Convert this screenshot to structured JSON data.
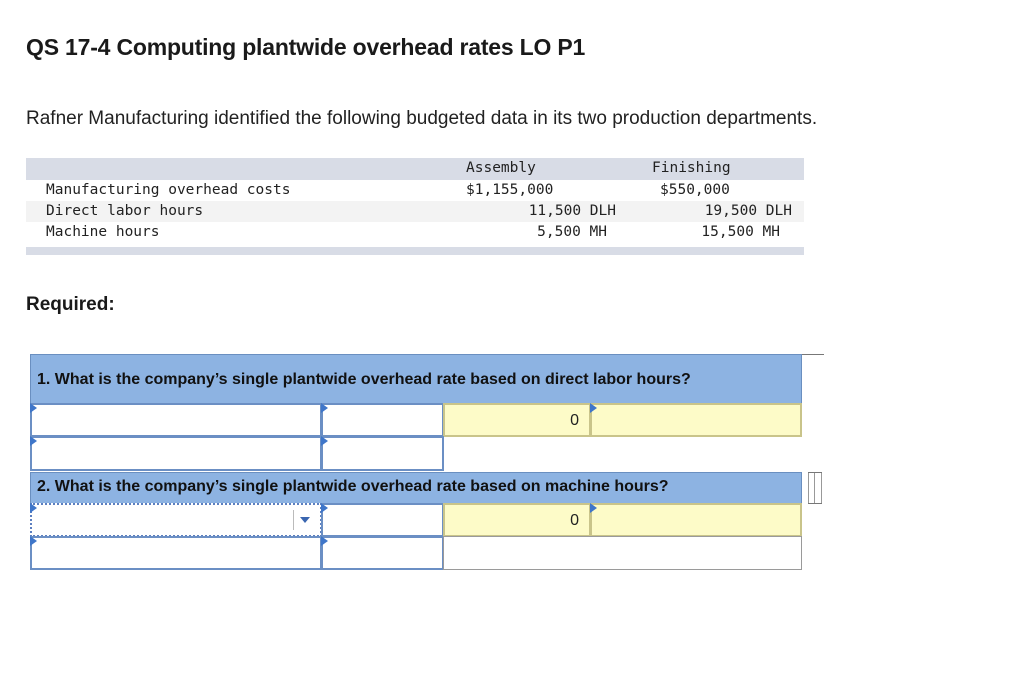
{
  "title": "QS 17-4 Computing plantwide overhead rates LO P1",
  "intro": "Rafner Manufacturing identified the following budgeted data in its two production departments.",
  "budget": {
    "headers": {
      "assembly": "Assembly",
      "finishing": "Finishing"
    },
    "rows": [
      {
        "label": "Manufacturing overhead costs",
        "assembly": "$1,155,000",
        "finishing": "$550,000"
      },
      {
        "label": "Direct labor hours",
        "assembly": "11,500 DLH",
        "finishing": "19,500 DLH"
      },
      {
        "label": "Machine hours",
        "assembly": "5,500 MH",
        "finishing": "15,500 MH"
      }
    ]
  },
  "required": "Required:",
  "q1": {
    "question": "1. What is the company’s single plantwide overhead rate based on direct labor hours?",
    "result_value": "0"
  },
  "q2": {
    "question": "2. What is the company’s single plantwide overhead rate based on machine hours?",
    "result_value": "0"
  },
  "colors": {
    "header_blue": "#8db3e2",
    "input_yellow": "#fdfbc8",
    "arrow_blue": "#3f76c9"
  }
}
